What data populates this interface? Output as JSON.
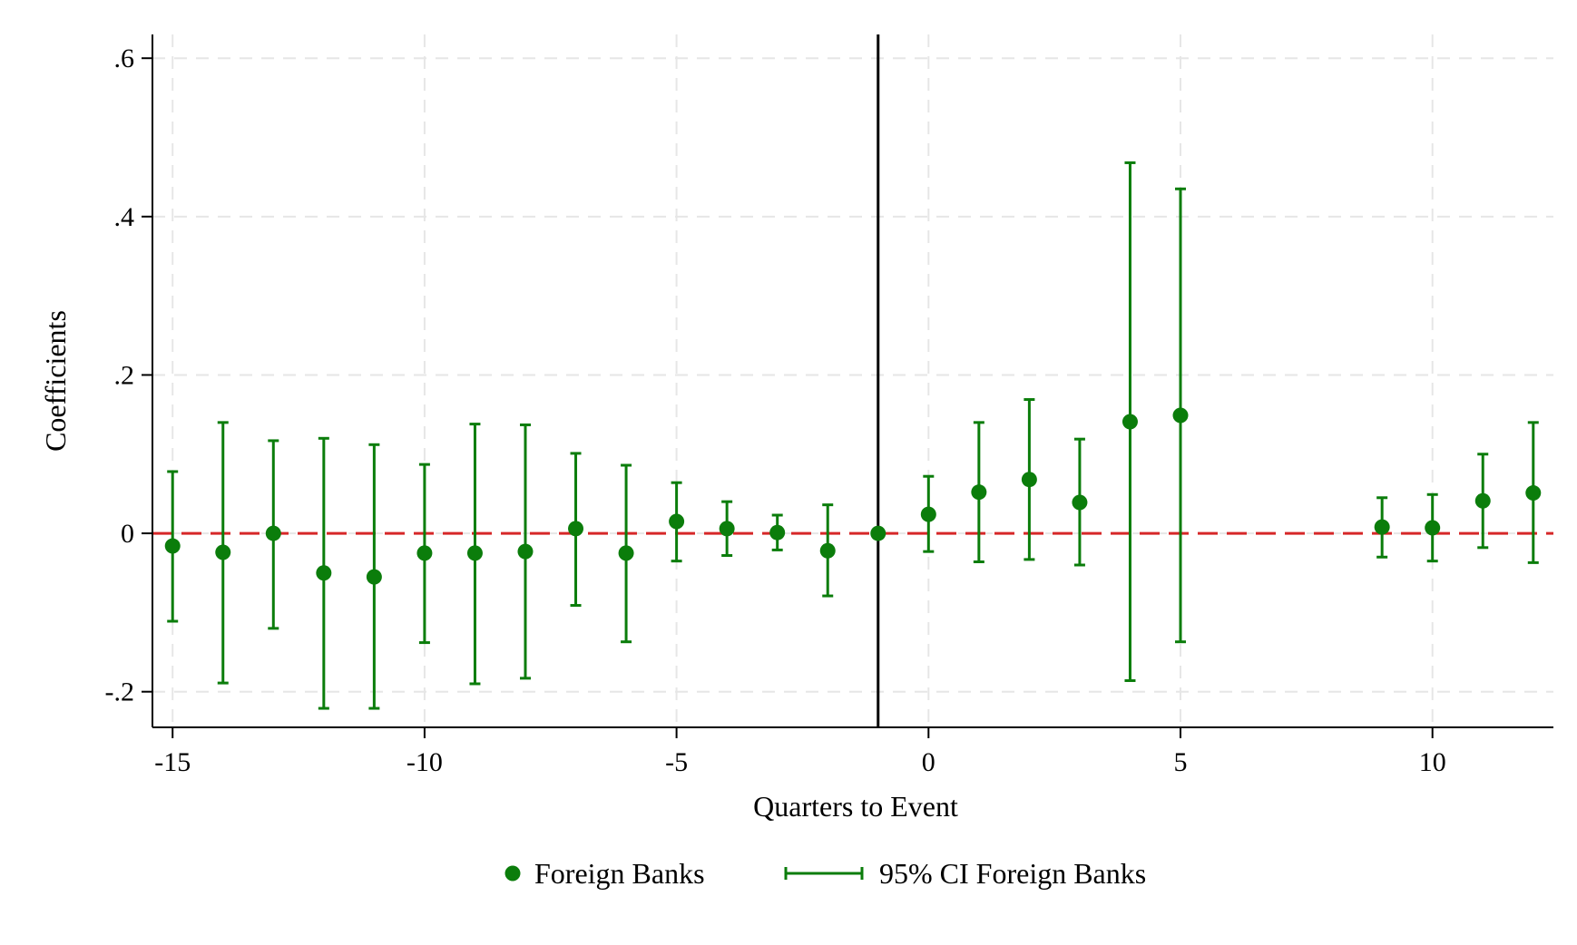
{
  "chart_data": {
    "type": "scatter",
    "title": "",
    "xlabel": "Quarters to Event",
    "ylabel": "Coefficients",
    "xlim": [
      -15.4,
      12.4
    ],
    "ylim": [
      -0.245,
      0.63
    ],
    "xticks": [
      -15,
      -10,
      -5,
      0,
      5,
      10
    ],
    "xtick_labels": [
      "-15",
      "-10",
      "-5",
      "0",
      "5",
      "10"
    ],
    "yticks": [
      -0.2,
      0,
      0.2,
      0.4,
      0.6
    ],
    "ytick_labels": [
      "-.2",
      "0",
      ".2",
      ".4",
      ".6"
    ],
    "grid": true,
    "reference_lines": {
      "vertical_x": -1,
      "horizontal_y": 0,
      "vertical_color": "#000000",
      "horizontal_color": "#d62728"
    },
    "legend_position": "bottom-center",
    "series": [
      {
        "name": "Foreign Banks",
        "ci_name": "95% CI Foreign Banks",
        "color": "#0b7d0b",
        "x": [
          -15,
          -14,
          -13,
          -12,
          -11,
          -10,
          -9,
          -8,
          -7,
          -6,
          -5,
          -4,
          -3,
          -2,
          -1,
          0,
          1,
          2,
          3,
          4,
          5,
          9,
          10,
          11,
          12
        ],
        "y": [
          -0.016,
          -0.024,
          0.0,
          -0.05,
          -0.055,
          -0.025,
          -0.025,
          -0.023,
          0.006,
          -0.025,
          0.015,
          0.006,
          0.001,
          -0.022,
          0.0,
          0.024,
          0.052,
          0.068,
          0.039,
          0.141,
          0.149,
          0.008,
          0.007,
          0.041,
          0.051
        ],
        "ci_low": [
          -0.111,
          -0.189,
          -0.12,
          -0.221,
          -0.221,
          -0.138,
          -0.19,
          -0.183,
          -0.091,
          -0.137,
          -0.035,
          -0.028,
          -0.021,
          -0.079,
          null,
          -0.023,
          -0.036,
          -0.033,
          -0.04,
          -0.186,
          -0.137,
          -0.03,
          -0.035,
          -0.018,
          -0.037
        ],
        "ci_high": [
          0.078,
          0.14,
          0.117,
          0.12,
          0.112,
          0.087,
          0.138,
          0.137,
          0.101,
          0.086,
          0.064,
          0.04,
          0.023,
          0.036,
          null,
          0.072,
          0.14,
          0.169,
          0.119,
          0.468,
          0.435,
          0.045,
          0.049,
          0.1,
          0.14
        ]
      }
    ]
  }
}
